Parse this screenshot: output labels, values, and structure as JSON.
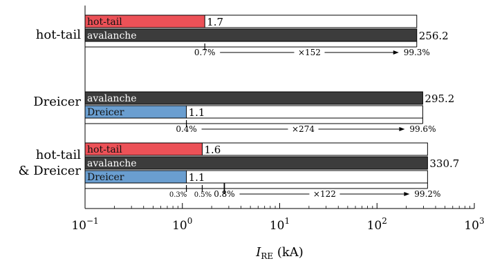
{
  "chart_data": {
    "type": "bar",
    "orientation": "horizontal",
    "x_scale": "log",
    "xlim": [
      0.1,
      1000
    ],
    "xlabel_main": "I",
    "xlabel_sub": "RE",
    "xlabel_unit": "(kA)",
    "tick_labels": [
      {
        "base": "10",
        "exp": "−1"
      },
      {
        "base": "10",
        "exp": "0"
      },
      {
        "base": "10",
        "exp": "1"
      },
      {
        "base": "10",
        "exp": "2"
      },
      {
        "base": "10",
        "exp": "3"
      }
    ],
    "colors": {
      "hot-tail": "#ec5157",
      "avalanche": "#3c3c3c",
      "Dreicer": "#6a9ed0",
      "avalanche_text": "#ffffff",
      "seed_text": "#111111"
    },
    "groups": [
      {
        "label_lines": [
          "hot-tail"
        ],
        "bars": [
          {
            "series": "hot-tail",
            "value": 1.7,
            "value_label": "1.7"
          },
          {
            "series": "avalanche",
            "value": 256.2,
            "value_label": "256.2"
          }
        ],
        "annotation": {
          "seed_percents": [
            "0.7%"
          ],
          "multiplier": "×152",
          "final_percent": "99.3%"
        }
      },
      {
        "label_lines": [
          "Dreicer"
        ],
        "bars": [
          {
            "series": "avalanche",
            "value": 295.2,
            "value_label": "295.2"
          },
          {
            "series": "Dreicer",
            "value": 1.1,
            "value_label": "1.1"
          }
        ],
        "annotation": {
          "seed_percents": [
            "0.4%"
          ],
          "multiplier": "×274",
          "final_percent": "99.6%"
        }
      },
      {
        "label_lines": [
          "hot-tail",
          "& Dreicer"
        ],
        "bars": [
          {
            "series": "hot-tail",
            "value": 1.6,
            "value_label": "1.6"
          },
          {
            "series": "avalanche",
            "value": 330.7,
            "value_label": "330.7"
          },
          {
            "series": "Dreicer",
            "value": 1.1,
            "value_label": "1.1"
          }
        ],
        "annotation": {
          "seed_percents": [
            "0.3%",
            "0.5%",
            "0.8%"
          ],
          "multiplier": "×122",
          "final_percent": "99.2%"
        }
      }
    ]
  }
}
